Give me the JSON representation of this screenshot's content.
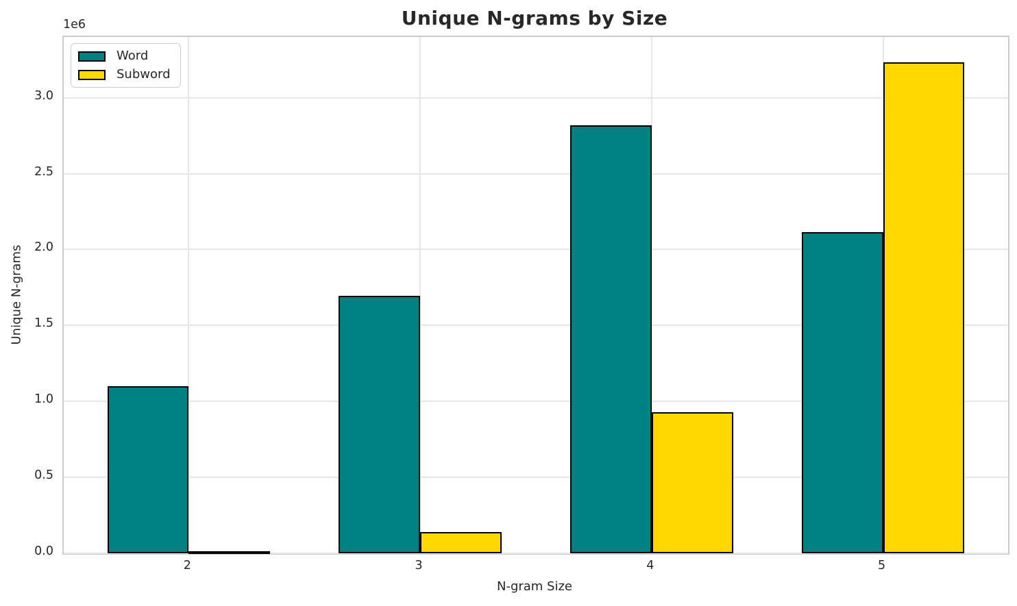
{
  "chart_data": {
    "type": "bar",
    "title": "Unique N-grams by Size",
    "xlabel": "N-gram Size",
    "ylabel": "Unique N-grams",
    "y_offset_text": "1e6",
    "categories": [
      "2",
      "3",
      "4",
      "5"
    ],
    "series": [
      {
        "name": "Word",
        "color": "#008080",
        "values": [
          1100000,
          1695000,
          2820000,
          2115000
        ]
      },
      {
        "name": "Subword",
        "color": "#FFD700",
        "values": [
          13000,
          140000,
          930000,
          3235000
        ]
      }
    ],
    "bar_edge_color": "#000000",
    "ylim": [
      0,
      3400000
    ],
    "xlim": [
      -0.54,
      3.54
    ],
    "bar_width": 0.352,
    "ytick_labels": [
      "0.0",
      "0.5",
      "1.0",
      "1.5",
      "2.0",
      "2.5",
      "3.0"
    ],
    "ytick_values": [
      0,
      500000,
      1000000,
      1500000,
      2000000,
      2500000,
      3000000
    ],
    "grid": true,
    "legend_position": "upper left"
  }
}
